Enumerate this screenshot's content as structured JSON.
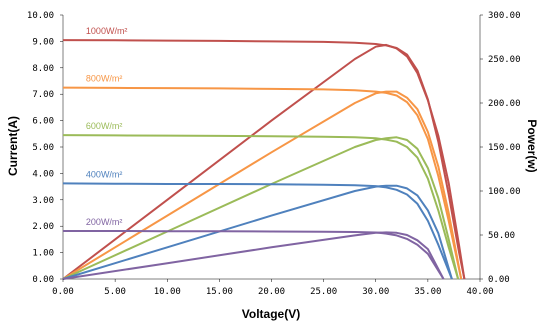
{
  "chart_data": {
    "type": "line",
    "title": "",
    "xlabel": "Voltage(V)",
    "ylabel": "Current(A)",
    "y2label": "Power(w)",
    "xlim": [
      0,
      40
    ],
    "ylim": [
      0,
      10
    ],
    "y2lim": [
      0,
      300
    ],
    "x_ticks": [
      "0.00",
      "5.00",
      "10.00",
      "15.00",
      "20.00",
      "25.00",
      "30.00",
      "35.00",
      "40.00"
    ],
    "y_ticks": [
      "0.00",
      "1.00",
      "2.00",
      "3.00",
      "4.00",
      "5.00",
      "6.00",
      "7.00",
      "8.00",
      "9.00",
      "10.00"
    ],
    "y2_ticks": [
      "0.00",
      "50.00",
      "100.00",
      "150.00",
      "200.00",
      "250.00",
      "300.00"
    ],
    "grid": false,
    "series": [
      {
        "name": "1000W/m²",
        "color": "#c0504d",
        "current": {
          "x": [
            0,
            5,
            10,
            15,
            20,
            25,
            28,
            30,
            31,
            32,
            33,
            34,
            35,
            36,
            37,
            38,
            38.5
          ],
          "y": [
            9.05,
            9.04,
            9.03,
            9.02,
            9.0,
            8.98,
            8.95,
            8.9,
            8.85,
            8.75,
            8.5,
            7.9,
            6.8,
            5.2,
            3.2,
            1.0,
            0
          ]
        },
        "power": {
          "x": [
            0,
            10,
            20,
            28,
            30,
            31,
            32,
            33,
            34,
            35,
            36,
            37,
            38,
            38.5
          ],
          "y": [
            0,
            90,
            180,
            250,
            264,
            266,
            262,
            253,
            234,
            203,
            163,
            109,
            38,
            0
          ]
        }
      },
      {
        "name": "800W/m²",
        "color": "#f79646",
        "current": {
          "x": [
            0,
            5,
            10,
            15,
            20,
            25,
            28,
            30,
            31,
            32,
            33,
            34,
            35,
            36,
            37,
            38.2
          ],
          "y": [
            7.25,
            7.24,
            7.23,
            7.22,
            7.2,
            7.18,
            7.15,
            7.1,
            7.05,
            6.95,
            6.7,
            6.2,
            5.3,
            3.9,
            2.2,
            0
          ]
        },
        "power": {
          "x": [
            0,
            10,
            20,
            28,
            30,
            31,
            32,
            33,
            34,
            35,
            36,
            37,
            38.2
          ],
          "y": [
            0,
            72,
            144,
            200,
            211,
            213,
            213,
            206,
            193,
            167,
            128,
            75,
            0
          ]
        }
      },
      {
        "name": "600W/m²",
        "color": "#9bbb59",
        "current": {
          "x": [
            0,
            5,
            10,
            15,
            20,
            25,
            28,
            30,
            31,
            32,
            33,
            34,
            35,
            36,
            37,
            37.9
          ],
          "y": [
            5.45,
            5.44,
            5.43,
            5.42,
            5.41,
            5.39,
            5.37,
            5.33,
            5.28,
            5.2,
            5.0,
            4.6,
            3.8,
            2.6,
            1.2,
            0
          ]
        },
        "power": {
          "x": [
            0,
            10,
            20,
            28,
            30,
            31,
            32,
            33,
            34,
            35,
            36,
            37,
            37.9
          ],
          "y": [
            0,
            54,
            108,
            150,
            158,
            160,
            161,
            158,
            148,
            126,
            92,
            45,
            0
          ]
        }
      },
      {
        "name": "400W/m²",
        "color": "#4f81bd",
        "current": {
          "x": [
            0,
            5,
            10,
            15,
            20,
            25,
            28,
            30,
            31,
            32,
            33,
            34,
            35,
            36,
            37.3
          ],
          "y": [
            3.62,
            3.61,
            3.6,
            3.6,
            3.59,
            3.57,
            3.55,
            3.52,
            3.47,
            3.38,
            3.2,
            2.85,
            2.2,
            1.3,
            0
          ]
        },
        "power": {
          "x": [
            0,
            10,
            20,
            28,
            30,
            31,
            32,
            33,
            34,
            35,
            36,
            37.3
          ],
          "y": [
            0,
            36,
            72,
            100,
            105,
            106,
            106,
            103,
            95,
            78,
            52,
            0
          ]
        }
      },
      {
        "name": "200W/m²",
        "color": "#8064a2",
        "current": {
          "x": [
            0,
            5,
            10,
            15,
            20,
            25,
            28,
            30,
            31,
            32,
            33,
            34,
            35,
            36.5
          ],
          "y": [
            1.82,
            1.82,
            1.81,
            1.81,
            1.8,
            1.79,
            1.78,
            1.76,
            1.72,
            1.65,
            1.52,
            1.3,
            0.95,
            0
          ]
        },
        "power": {
          "x": [
            0,
            10,
            20,
            28,
            30,
            31,
            32,
            33,
            34,
            35,
            36.5
          ],
          "y": [
            0,
            18,
            36,
            49.5,
            52.5,
            53,
            52.5,
            50,
            44,
            34,
            0
          ]
        }
      }
    ]
  }
}
